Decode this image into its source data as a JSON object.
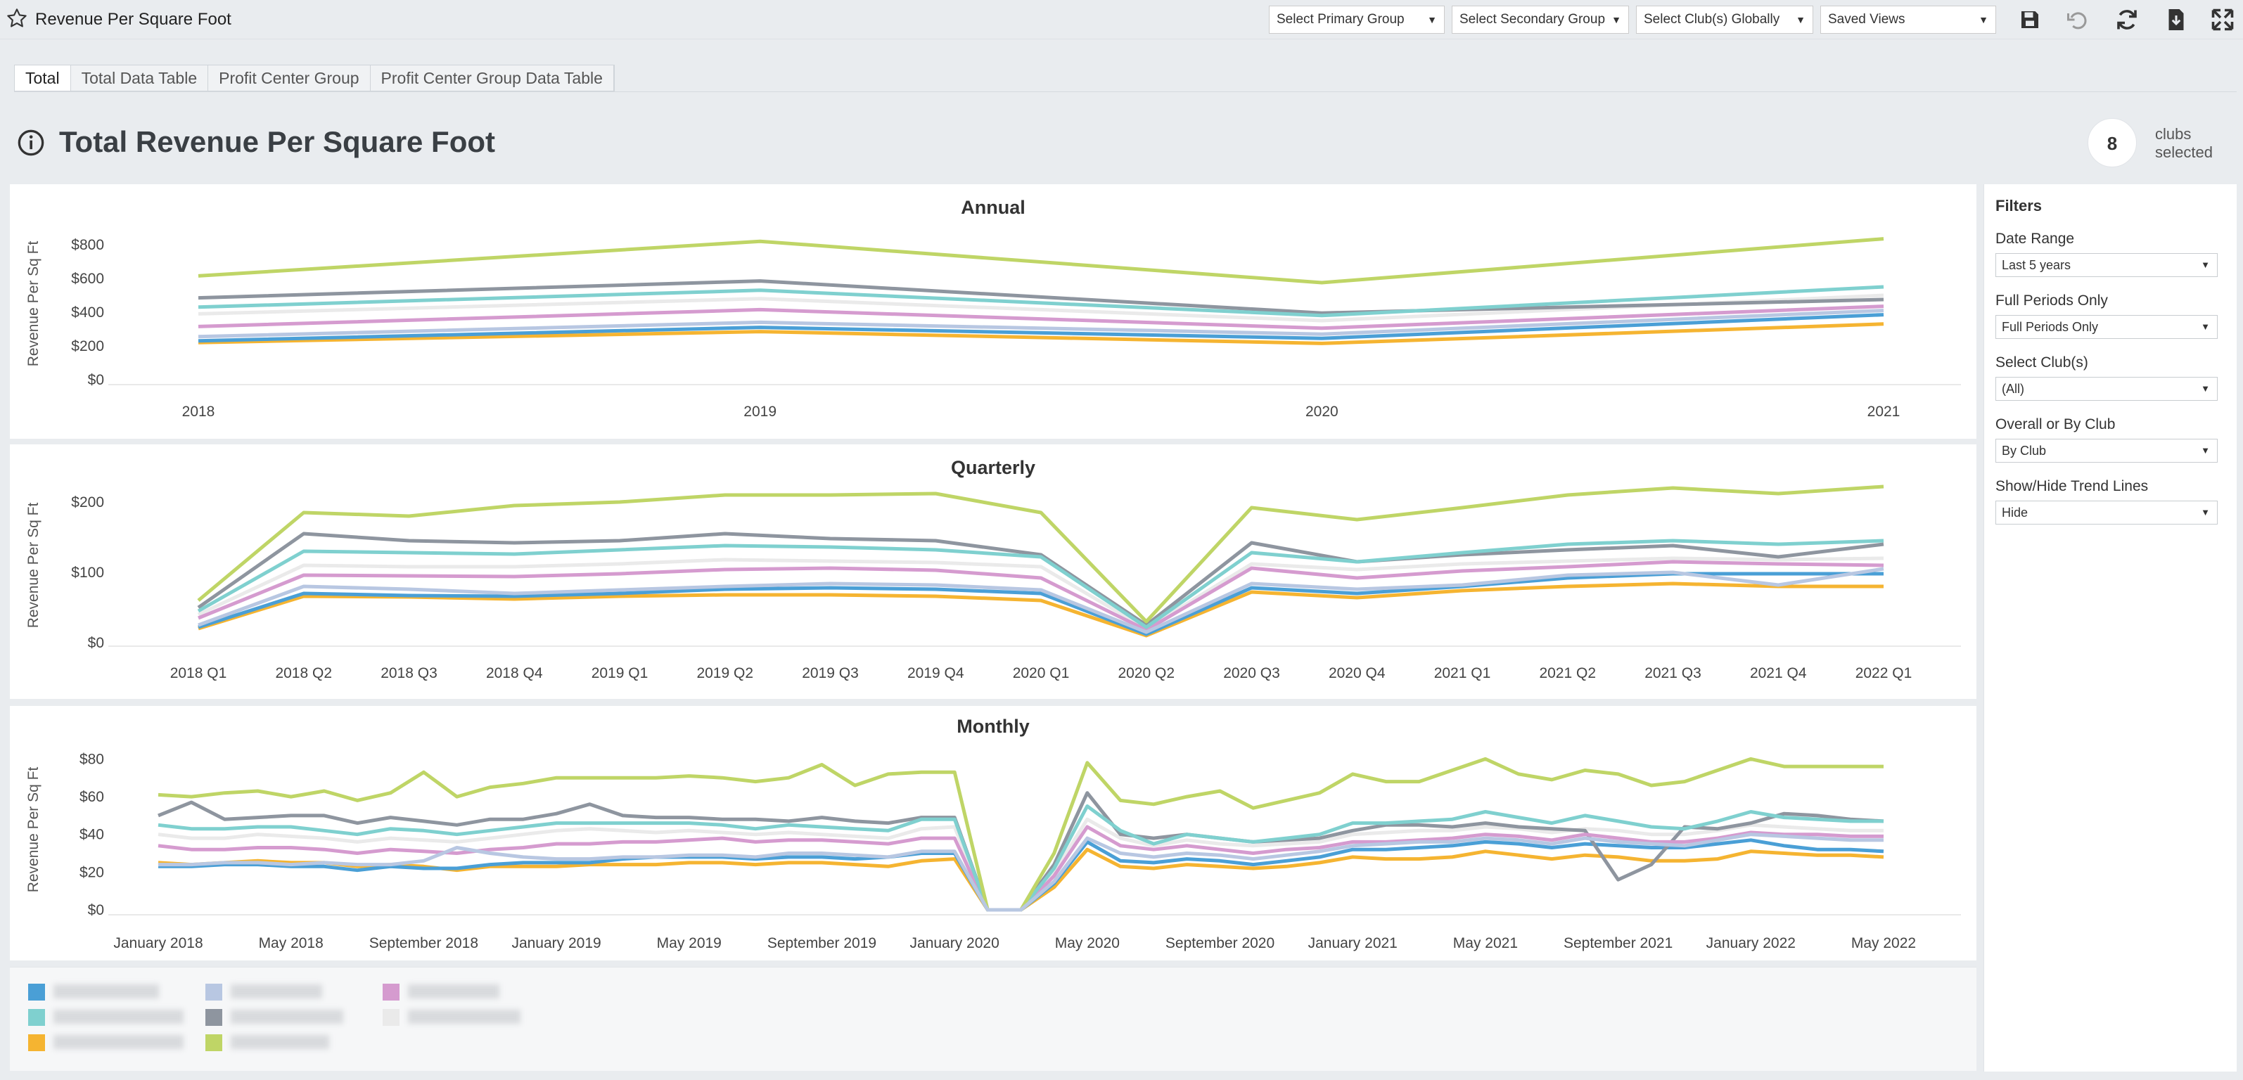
{
  "header": {
    "title": "Revenue Per Square Foot",
    "primary_group": "Select Primary Group",
    "secondary_group": "Select Secondary Group",
    "clubs_global": "Select Club(s) Globally",
    "saved_views": "Saved Views",
    "icons": [
      "star-icon",
      "save-icon",
      "undo-icon",
      "refresh-icon",
      "download-icon",
      "fullscreen-icon"
    ]
  },
  "tabs": [
    {
      "label": "Total"
    },
    {
      "label": "Total Data Table"
    },
    {
      "label": "Profit Center Group"
    },
    {
      "label": "Profit Center Group Data Table"
    }
  ],
  "page_title": "Total Revenue Per Square Foot",
  "clubs_selected": {
    "count": "8",
    "label": "clubs selected"
  },
  "filters": {
    "title": "Filters",
    "items": [
      {
        "label": "Date Range",
        "value": "Last 5 years"
      },
      {
        "label": "Full Periods Only",
        "value": "Full Periods Only"
      },
      {
        "label": "Select Club(s)",
        "value": "(All)"
      },
      {
        "label": "Overall or By Club",
        "value": "By Club"
      },
      {
        "label": "Show/Hide Trend Lines",
        "value": "Hide"
      }
    ]
  },
  "series_colors": [
    "#4a9fd6",
    "#7fd0cf",
    "#f5b431",
    "#b8c7e2",
    "#8e959f",
    "#bfd566",
    "#d59bcf",
    "#eaeaea"
  ],
  "chart_data": [
    {
      "type": "line",
      "title": "Annual",
      "ylabel": "Revenue Per Sq Ft",
      "ylim": [
        0,
        900
      ],
      "yticks": [
        "$0",
        "$200",
        "$400",
        "$600",
        "$800"
      ],
      "ytick_values": [
        0,
        200,
        400,
        600,
        800
      ],
      "categories": [
        "2018",
        "2019",
        "2020",
        "2021"
      ],
      "series": [
        {
          "values": [
            615,
            820,
            575,
            835
          ]
        },
        {
          "values": [
            485,
            585,
            395,
            475
          ]
        },
        {
          "values": [
            430,
            530,
            380,
            550
          ]
        },
        {
          "values": [
            390,
            480,
            350,
            500
          ]
        },
        {
          "values": [
            315,
            415,
            305,
            435
          ]
        },
        {
          "values": [
            255,
            340,
            270,
            410
          ]
        },
        {
          "values": [
            230,
            310,
            245,
            385
          ]
        },
        {
          "values": [
            220,
            285,
            215,
            330
          ]
        }
      ]
    },
    {
      "type": "line",
      "title": "Quarterly",
      "ylabel": "Revenue Per Sq Ft",
      "ylim": [
        0,
        220
      ],
      "yticks": [
        "$0",
        "$100",
        "$200"
      ],
      "ytick_values": [
        0,
        100,
        200
      ],
      "categories": [
        "2018 Q1",
        "2018 Q2",
        "2018 Q3",
        "2018 Q4",
        "2019 Q1",
        "2019 Q2",
        "2019 Q3",
        "2019 Q4",
        "2020 Q1",
        "2020 Q2",
        "2020 Q3",
        "2020 Q4",
        "2021 Q1",
        "2021 Q2",
        "2021 Q3",
        "2021 Q4",
        "2022 Q1"
      ],
      "series": [
        {
          "values": [
            60,
            185,
            180,
            195,
            200,
            210,
            210,
            212,
            185,
            30,
            192,
            175,
            192,
            210,
            220,
            212,
            222
          ]
        },
        {
          "values": [
            50,
            155,
            145,
            142,
            145,
            155,
            148,
            145,
            125,
            25,
            142,
            115,
            125,
            132,
            138,
            122,
            140
          ]
        },
        {
          "values": [
            45,
            130,
            128,
            126,
            132,
            138,
            136,
            132,
            122,
            22,
            128,
            115,
            128,
            140,
            145,
            140,
            145
          ]
        },
        {
          "values": [
            40,
            110,
            108,
            108,
            112,
            118,
            116,
            114,
            108,
            20,
            112,
            104,
            112,
            116,
            120,
            118,
            120
          ]
        },
        {
          "values": [
            35,
            96,
            95,
            94,
            98,
            104,
            106,
            103,
            92,
            18,
            106,
            92,
            102,
            108,
            115,
            112,
            110
          ]
        },
        {
          "values": [
            25,
            80,
            76,
            70,
            75,
            80,
            84,
            82,
            75,
            15,
            84,
            76,
            82,
            96,
            100,
            82,
            105
          ]
        },
        {
          "values": [
            22,
            70,
            67,
            66,
            70,
            76,
            78,
            76,
            70,
            12,
            78,
            70,
            80,
            92,
            98,
            98,
            98
          ]
        },
        {
          "values": [
            20,
            66,
            65,
            62,
            66,
            68,
            68,
            66,
            60,
            10,
            72,
            64,
            74,
            80,
            84,
            80,
            80
          ]
        }
      ]
    },
    {
      "type": "line",
      "title": "Monthly",
      "ylabel": "Revenue Per Sq Ft",
      "ylim": [
        0,
        85
      ],
      "yticks": [
        "$0",
        "$20",
        "$40",
        "$60",
        "$80"
      ],
      "ytick_values": [
        0,
        20,
        40,
        60,
        80
      ],
      "x_labels": [
        "January 2018",
        "May 2018",
        "September 2018",
        "January 2019",
        "May 2019",
        "September 2019",
        "January 2020",
        "May 2020",
        "September 2020",
        "January 2021",
        "May 2021",
        "September 2021",
        "January 2022",
        "May 2022"
      ],
      "x_label_months": [
        0,
        4,
        8,
        12,
        16,
        20,
        24,
        28,
        32,
        36,
        40,
        44,
        48,
        52
      ],
      "n_months": 53,
      "series": [
        {
          "values": [
            61,
            60,
            62,
            63,
            60,
            63,
            58,
            62,
            73,
            60,
            65,
            67,
            70,
            70,
            70,
            70,
            71,
            70,
            68,
            70,
            77,
            66,
            72,
            73,
            73,
            0,
            0,
            30,
            78,
            58,
            56,
            60,
            63,
            54,
            58,
            62,
            72,
            68,
            68,
            74,
            80,
            72,
            69,
            74,
            72,
            66,
            68,
            74,
            80,
            76,
            76,
            76,
            76
          ]
        },
        {
          "values": [
            50,
            57,
            48,
            49,
            50,
            50,
            46,
            49,
            47,
            45,
            48,
            48,
            51,
            56,
            50,
            49,
            49,
            48,
            48,
            47,
            49,
            47,
            46,
            49,
            49,
            0,
            0,
            24,
            62,
            40,
            38,
            40,
            38,
            36,
            37,
            38,
            42,
            45,
            45,
            44,
            46,
            44,
            43,
            42,
            16,
            24,
            44,
            43,
            46,
            51,
            50,
            48,
            47
          ]
        },
        {
          "values": [
            45,
            43,
            43,
            44,
            44,
            42,
            40,
            43,
            42,
            40,
            42,
            44,
            46,
            46,
            46,
            46,
            46,
            45,
            43,
            45,
            44,
            43,
            42,
            48,
            48,
            0,
            0,
            22,
            55,
            42,
            35,
            40,
            38,
            36,
            38,
            40,
            46,
            46,
            47,
            48,
            52,
            49,
            46,
            50,
            47,
            44,
            43,
            47,
            52,
            49,
            48,
            47,
            47
          ]
        },
        {
          "values": [
            40,
            38,
            38,
            40,
            39,
            38,
            36,
            38,
            37,
            36,
            38,
            40,
            42,
            43,
            42,
            41,
            42,
            41,
            40,
            41,
            40,
            39,
            38,
            43,
            44,
            0,
            0,
            20,
            48,
            38,
            34,
            37,
            35,
            34,
            35,
            36,
            40,
            41,
            42,
            42,
            44,
            43,
            41,
            43,
            42,
            40,
            40,
            42,
            45,
            44,
            43,
            42,
            42
          ]
        },
        {
          "values": [
            34,
            32,
            32,
            33,
            33,
            32,
            30,
            32,
            31,
            30,
            32,
            33,
            35,
            35,
            36,
            36,
            37,
            38,
            36,
            37,
            37,
            36,
            35,
            38,
            38,
            0,
            0,
            18,
            44,
            34,
            32,
            34,
            32,
            30,
            32,
            33,
            36,
            36,
            37,
            38,
            40,
            39,
            37,
            40,
            38,
            36,
            36,
            38,
            41,
            40,
            40,
            39,
            39
          ]
        },
        {
          "values": [
            24,
            24,
            25,
            25,
            24,
            25,
            24,
            24,
            26,
            33,
            30,
            28,
            27,
            27,
            28,
            28,
            29,
            29,
            28,
            30,
            30,
            29,
            28,
            31,
            31,
            0,
            0,
            15,
            38,
            30,
            28,
            30,
            29,
            27,
            29,
            31,
            34,
            35,
            36,
            36,
            38,
            37,
            35,
            38,
            36,
            35,
            34,
            37,
            40,
            39,
            38,
            37,
            37
          ]
        },
        {
          "values": [
            23,
            23,
            24,
            24,
            23,
            23,
            21,
            23,
            22,
            22,
            24,
            25,
            25,
            25,
            27,
            28,
            28,
            28,
            27,
            28,
            28,
            27,
            28,
            30,
            30,
            0,
            0,
            14,
            36,
            26,
            25,
            27,
            26,
            24,
            26,
            28,
            32,
            32,
            33,
            34,
            36,
            35,
            33,
            35,
            34,
            33,
            33,
            35,
            37,
            34,
            32,
            32,
            31
          ]
        },
        {
          "values": [
            25,
            24,
            25,
            26,
            25,
            25,
            23,
            24,
            23,
            21,
            23,
            23,
            23,
            24,
            24,
            24,
            25,
            25,
            24,
            25,
            25,
            24,
            23,
            26,
            27,
            0,
            0,
            12,
            32,
            23,
            22,
            24,
            23,
            22,
            23,
            25,
            28,
            27,
            27,
            28,
            31,
            29,
            27,
            29,
            28,
            26,
            26,
            27,
            31,
            30,
            29,
            29,
            28
          ]
        }
      ]
    }
  ]
}
